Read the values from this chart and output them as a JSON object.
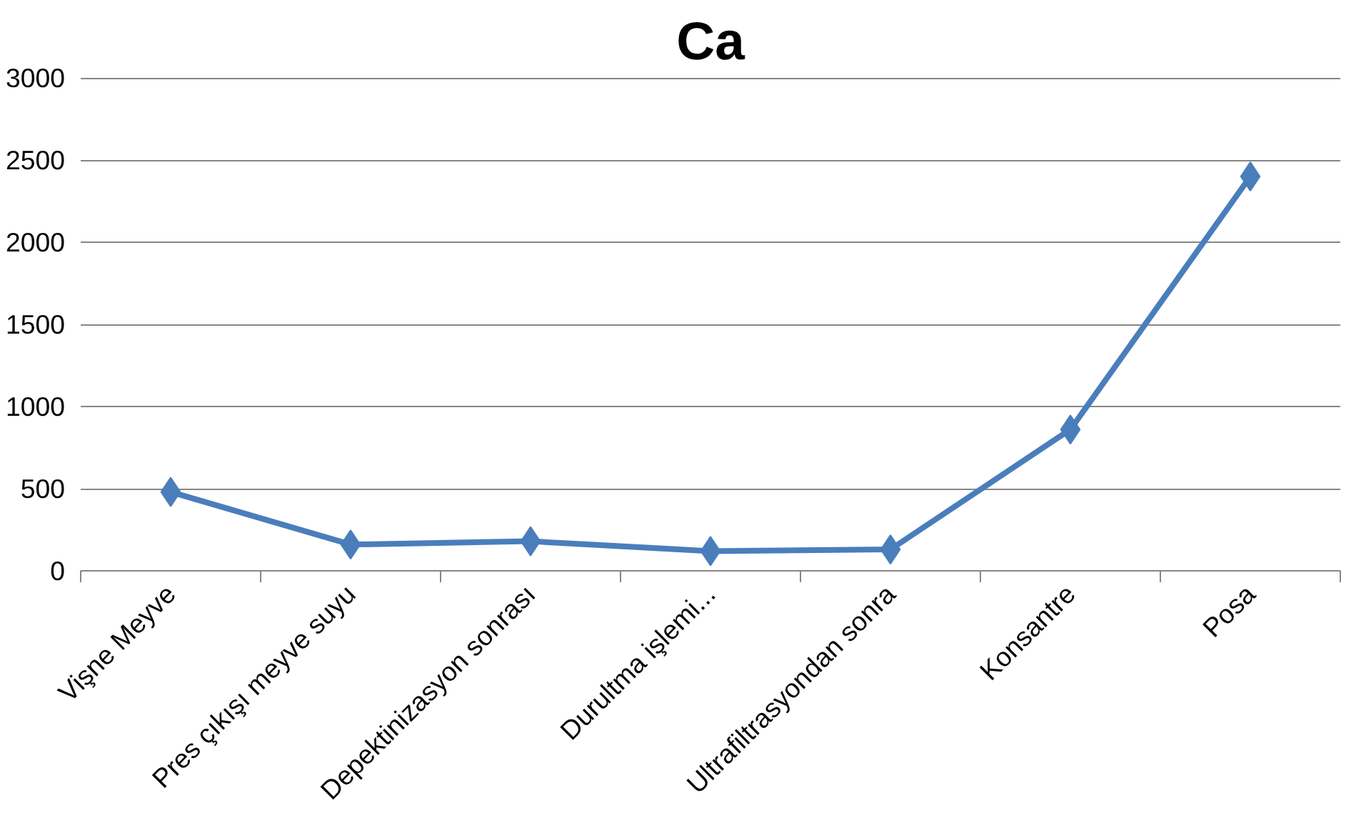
{
  "chart_data": {
    "type": "line",
    "title": "Ca",
    "categories": [
      "Vişne Meyve",
      "Pres çıkışı meyve suyu",
      "Depektinizasyon sonrası",
      "Durultma işlemi...",
      "Ultrafiltrasyondan sonra",
      "Konsantre",
      "Posa"
    ],
    "series": [
      {
        "color": "#4a7ebb",
        "values": [
          480,
          160,
          180,
          120,
          130,
          860,
          2400
        ]
      }
    ],
    "ylim": [
      0,
      3000
    ],
    "yticks": [
      0,
      500,
      1000,
      1500,
      2000,
      2500,
      3000
    ],
    "grid": "y",
    "marker": "diamond",
    "line_style": "solid"
  }
}
